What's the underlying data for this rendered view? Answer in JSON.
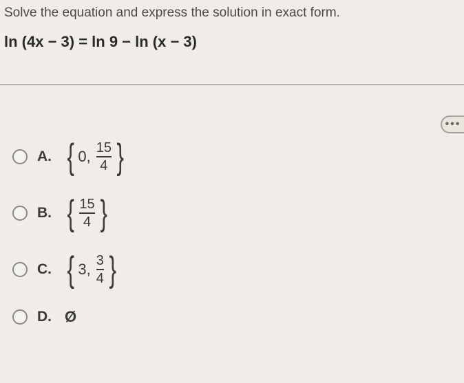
{
  "instruction": "Solve the equation and express the solution in exact form.",
  "equation": "ln (4x − 3) = ln 9 − ln (x − 3)",
  "ellipsis": "•••",
  "options": {
    "a": {
      "letter": "A.",
      "leading": "0,",
      "frac_num": "15",
      "frac_den": "4"
    },
    "b": {
      "letter": "B.",
      "frac_num": "15",
      "frac_den": "4"
    },
    "c": {
      "letter": "C.",
      "leading": "3,",
      "frac_num": "3",
      "frac_den": "4"
    },
    "d": {
      "letter": "D.",
      "value": "Ø"
    }
  },
  "style": {
    "background": "#f0ede8",
    "text_color": "#3a3a3a",
    "hr_color": "#b5b2ac",
    "radio_border": "#8a8882"
  }
}
